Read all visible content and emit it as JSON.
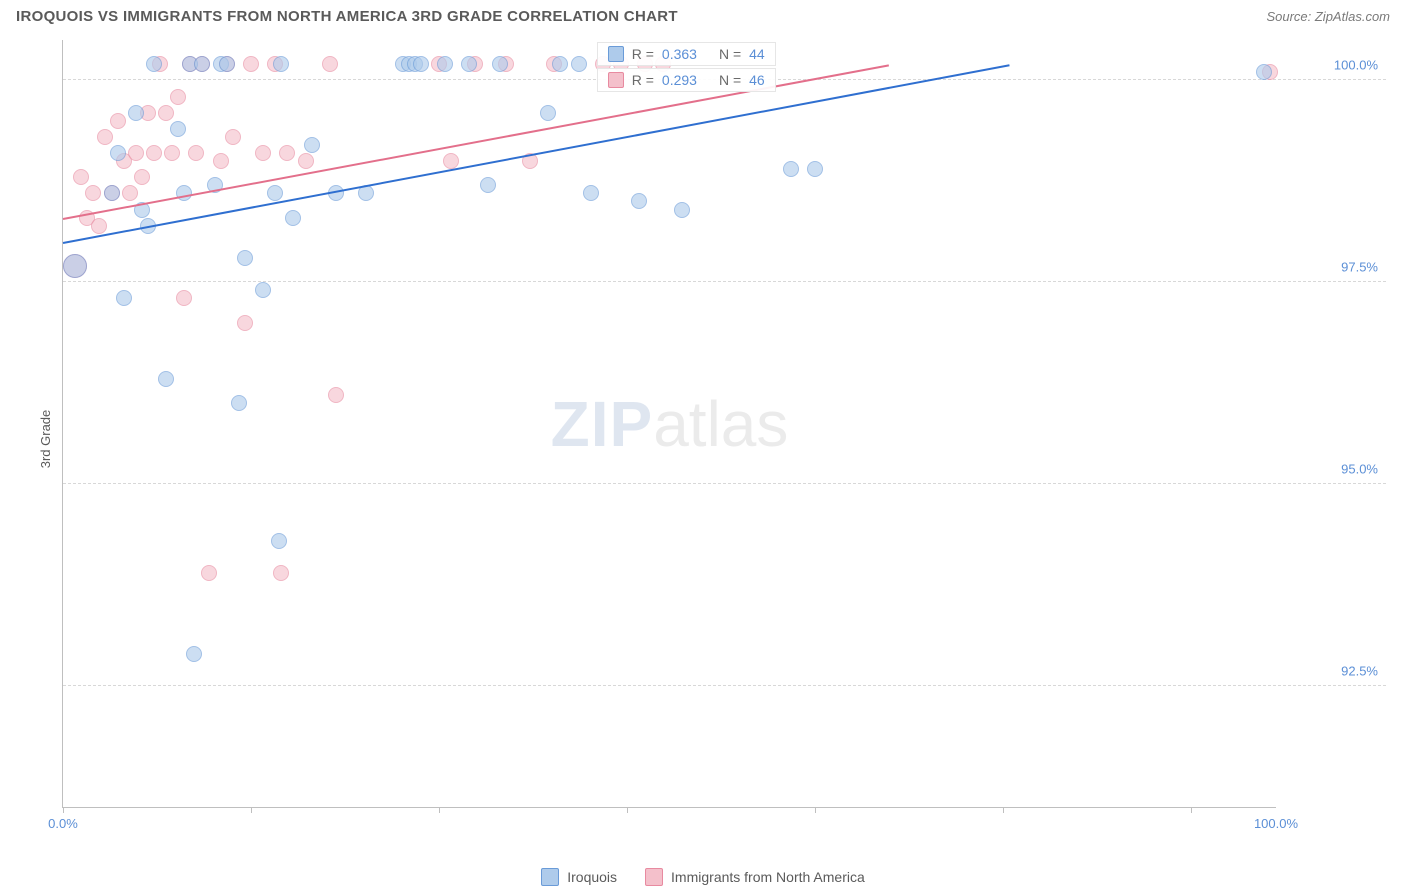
{
  "header": {
    "title": "IROQUOIS VS IMMIGRANTS FROM NORTH AMERICA 3RD GRADE CORRELATION CHART",
    "source": "Source: ZipAtlas.com"
  },
  "chart": {
    "type": "scatter",
    "ylabel": "3rd Grade",
    "background_color": "#ffffff",
    "grid_color": "#d8d8d8",
    "axis_color": "#bfbfbf",
    "label_color": "#5b8fd6",
    "label_fontsize": 13,
    "xlim": [
      0,
      100
    ],
    "ylim": [
      91,
      100.5
    ],
    "yticks": [
      {
        "v": 100.0,
        "label": "100.0%"
      },
      {
        "v": 97.5,
        "label": "97.5%"
      },
      {
        "v": 95.0,
        "label": "95.0%"
      },
      {
        "v": 92.5,
        "label": "92.5%"
      }
    ],
    "xticks_minor": [
      0,
      15.5,
      31,
      46.5,
      62,
      77.5,
      93
    ],
    "xtick_labels": [
      {
        "v": 0,
        "label": "0.0%"
      },
      {
        "v": 100,
        "label": "100.0%"
      }
    ],
    "series": [
      {
        "name": "Iroquois",
        "fill": "#aecbeb",
        "stroke": "#6a9bd8",
        "trend_color": "#2f6fd0",
        "trend": {
          "x1": 0,
          "y1": 98.0,
          "x2": 78,
          "y2": 100.2
        },
        "stats": {
          "R": "0.363",
          "N": "44"
        },
        "points": [
          {
            "x": 1.0,
            "y": 97.7,
            "big": true
          },
          {
            "x": 4.0,
            "y": 98.6
          },
          {
            "x": 4.5,
            "y": 99.1
          },
          {
            "x": 5.0,
            "y": 97.3
          },
          {
            "x": 6.0,
            "y": 99.6
          },
          {
            "x": 6.5,
            "y": 98.4
          },
          {
            "x": 7.0,
            "y": 98.2
          },
          {
            "x": 7.5,
            "y": 100.2
          },
          {
            "x": 8.5,
            "y": 96.3
          },
          {
            "x": 9.5,
            "y": 99.4
          },
          {
            "x": 10.0,
            "y": 98.6
          },
          {
            "x": 10.5,
            "y": 100.2
          },
          {
            "x": 10.8,
            "y": 92.9
          },
          {
            "x": 11.5,
            "y": 100.2
          },
          {
            "x": 12.5,
            "y": 98.7
          },
          {
            "x": 13.0,
            "y": 100.2
          },
          {
            "x": 13.5,
            "y": 100.2
          },
          {
            "x": 14.5,
            "y": 96.0
          },
          {
            "x": 15.0,
            "y": 97.8
          },
          {
            "x": 16.5,
            "y": 97.4
          },
          {
            "x": 17.5,
            "y": 98.6
          },
          {
            "x": 17.8,
            "y": 94.3
          },
          {
            "x": 18.0,
            "y": 100.2
          },
          {
            "x": 19.0,
            "y": 98.3
          },
          {
            "x": 20.5,
            "y": 99.2
          },
          {
            "x": 22.5,
            "y": 98.6
          },
          {
            "x": 25.0,
            "y": 98.6
          },
          {
            "x": 28.0,
            "y": 100.2
          },
          {
            "x": 28.5,
            "y": 100.2
          },
          {
            "x": 29.0,
            "y": 100.2
          },
          {
            "x": 29.5,
            "y": 100.2
          },
          {
            "x": 31.5,
            "y": 100.2
          },
          {
            "x": 33.5,
            "y": 100.2
          },
          {
            "x": 35.0,
            "y": 98.7
          },
          {
            "x": 36.0,
            "y": 100.2
          },
          {
            "x": 40.0,
            "y": 99.6
          },
          {
            "x": 41.0,
            "y": 100.2
          },
          {
            "x": 42.5,
            "y": 100.2
          },
          {
            "x": 43.5,
            "y": 98.6
          },
          {
            "x": 47.5,
            "y": 98.5
          },
          {
            "x": 51.0,
            "y": 98.4
          },
          {
            "x": 60.0,
            "y": 98.9
          },
          {
            "x": 62.0,
            "y": 98.9
          },
          {
            "x": 99.0,
            "y": 100.1
          }
        ]
      },
      {
        "name": "Immigrants from North America",
        "fill": "#f4c0cb",
        "stroke": "#e88aa0",
        "trend_color": "#e36f8b",
        "trend": {
          "x1": 0,
          "y1": 98.3,
          "x2": 68,
          "y2": 100.2
        },
        "stats": {
          "R": "0.293",
          "N": "46"
        },
        "points": [
          {
            "x": 1.0,
            "y": 97.7,
            "big": true
          },
          {
            "x": 1.5,
            "y": 98.8
          },
          {
            "x": 2.0,
            "y": 98.3
          },
          {
            "x": 2.5,
            "y": 98.6
          },
          {
            "x": 3.0,
            "y": 98.2
          },
          {
            "x": 3.5,
            "y": 99.3
          },
          {
            "x": 4.0,
            "y": 98.6
          },
          {
            "x": 4.5,
            "y": 99.5
          },
          {
            "x": 5.0,
            "y": 99.0
          },
          {
            "x": 5.5,
            "y": 98.6
          },
          {
            "x": 6.0,
            "y": 99.1
          },
          {
            "x": 6.5,
            "y": 98.8
          },
          {
            "x": 7.0,
            "y": 99.6
          },
          {
            "x": 7.5,
            "y": 99.1
          },
          {
            "x": 8.0,
            "y": 100.2
          },
          {
            "x": 8.5,
            "y": 99.6
          },
          {
            "x": 9.0,
            "y": 99.1
          },
          {
            "x": 9.5,
            "y": 99.8
          },
          {
            "x": 10.0,
            "y": 97.3
          },
          {
            "x": 10.5,
            "y": 100.2
          },
          {
            "x": 11.0,
            "y": 99.1
          },
          {
            "x": 11.5,
            "y": 100.2
          },
          {
            "x": 12.0,
            "y": 93.9
          },
          {
            "x": 13.0,
            "y": 99.0
          },
          {
            "x": 13.5,
            "y": 100.2
          },
          {
            "x": 14.0,
            "y": 99.3
          },
          {
            "x": 15.0,
            "y": 97.0
          },
          {
            "x": 15.5,
            "y": 100.2
          },
          {
            "x": 16.5,
            "y": 99.1
          },
          {
            "x": 17.5,
            "y": 100.2
          },
          {
            "x": 18.0,
            "y": 93.9
          },
          {
            "x": 18.5,
            "y": 99.1
          },
          {
            "x": 20.0,
            "y": 99.0
          },
          {
            "x": 22.0,
            "y": 100.2
          },
          {
            "x": 22.5,
            "y": 96.1
          },
          {
            "x": 31.0,
            "y": 100.2
          },
          {
            "x": 32.0,
            "y": 99.0
          },
          {
            "x": 34.0,
            "y": 100.2
          },
          {
            "x": 36.5,
            "y": 100.2
          },
          {
            "x": 38.5,
            "y": 99.0
          },
          {
            "x": 40.5,
            "y": 100.2
          },
          {
            "x": 44.5,
            "y": 100.2
          },
          {
            "x": 46.0,
            "y": 100.2
          },
          {
            "x": 48.0,
            "y": 100.2
          },
          {
            "x": 49.5,
            "y": 100.2
          },
          {
            "x": 99.5,
            "y": 100.1
          }
        ]
      }
    ],
    "stat_labels": {
      "R": "R =",
      "N": "N ="
    },
    "watermark": {
      "left": "ZIP",
      "right": "atlas"
    }
  },
  "legend": {
    "items": [
      {
        "label": "Iroquois",
        "fill": "#aecbeb",
        "stroke": "#6a9bd8"
      },
      {
        "label": "Immigrants from North America",
        "fill": "#f4c0cb",
        "stroke": "#e88aa0"
      }
    ]
  }
}
